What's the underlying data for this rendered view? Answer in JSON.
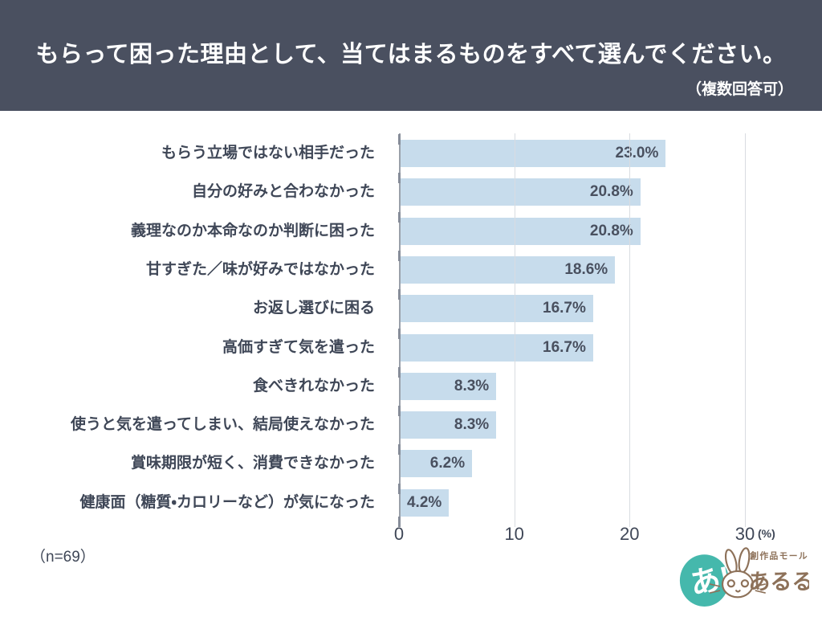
{
  "header": {
    "title": "もらって困った理由として、当てはまるものをすべて選んでください。",
    "subtitle": "（複数回答可）"
  },
  "chart_data": {
    "type": "bar",
    "orientation": "horizontal",
    "title": "もらって困った理由として、当てはまるものをすべて選んでください。（複数回答可）",
    "categories": [
      "もらう立場ではない相手だった",
      "自分の好みと合わなかった",
      "義理なのか本命なのか判断に困った",
      "甘すぎた／味が好みではなかった",
      "お返し選びに困る",
      "高価すぎて気を遣った",
      "食べきれなかった",
      "使うと気を遣ってしまい、結局使えなかった",
      "賞味期限が短く、消費できなかった",
      "健康面（糖質・カロリーなど）が気になった"
    ],
    "values": [
      23.0,
      20.8,
      20.8,
      18.6,
      16.7,
      16.7,
      8.3,
      8.3,
      6.2,
      4.2
    ],
    "value_labels": [
      "23.0%",
      "20.8%",
      "20.8%",
      "18.6%",
      "16.7%",
      "16.7%",
      "8.3%",
      "8.3%",
      "6.2%",
      "4.2%"
    ],
    "xlabel": "",
    "ylabel": "",
    "xlim": [
      0,
      30
    ],
    "x_ticks": [
      0,
      10,
      20,
      30
    ],
    "x_unit": "(%)",
    "grid": true,
    "legend": false,
    "bar_color": "#c7dcec"
  },
  "footer": {
    "sample_size": "（n=69）"
  },
  "logo": {
    "badge_text": "あ!",
    "tagline": "創作品モール",
    "name": "あるる",
    "teal": "#45b8ac",
    "brown": "#8d7159"
  },
  "colors": {
    "header_bg": "#4a5060",
    "text": "#3f4757",
    "bar": "#c7dcec",
    "grid": "#d9dce1",
    "axis": "#9aa0aa"
  }
}
